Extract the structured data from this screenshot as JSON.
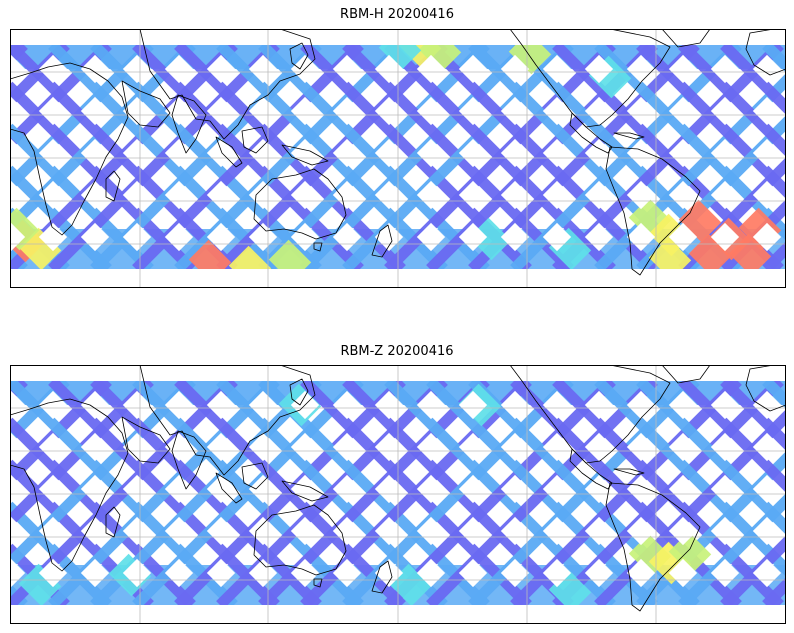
{
  "panels": [
    {
      "title": "RBM-H 20200416"
    },
    {
      "title": "RBM-Z 20200416"
    }
  ],
  "colors": {
    "low": "#6a6af2",
    "mid_low": "#5aaaf5",
    "mid": "#5ee0e8",
    "mid_high": "#c8f27a",
    "high": "#f7f263",
    "peak": "#ff7b63",
    "coast": "#000000",
    "grid": "#bbbbbb"
  }
}
